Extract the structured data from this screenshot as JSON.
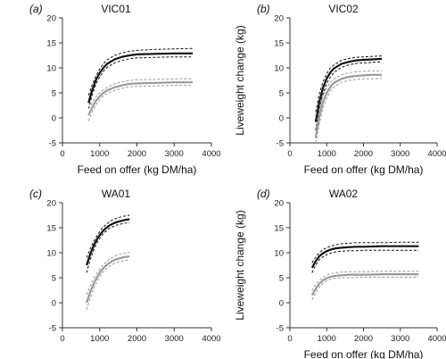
{
  "figure": {
    "ylabel": "Liveweight change (kg)",
    "xlabel": "Feed on offer (kg DM/ha)",
    "colors": {
      "dark": "#111111",
      "light": "#9a9a9a",
      "axis": "#333333"
    }
  },
  "chart_data": [
    {
      "panel_label": "(a)",
      "title": "VIC01",
      "type": "line",
      "xlim": [
        0,
        4000
      ],
      "ylim": [
        -5,
        20
      ],
      "xticks": [
        0,
        1000,
        2000,
        3000,
        4000
      ],
      "yticks": [
        -5,
        0,
        5,
        10,
        15,
        20
      ],
      "show_xlabel": true,
      "show_ylabel": false,
      "x": [
        700,
        800,
        900,
        1000,
        1100,
        1200,
        1400,
        1600,
        1800,
        2000,
        2500,
        3000,
        3500
      ],
      "series": [
        {
          "style": "dark",
          "values": [
            3.0,
            5.6,
            7.6,
            9.0,
            10.0,
            10.8,
            11.7,
            12.2,
            12.5,
            12.7,
            12.8,
            12.9,
            12.9
          ],
          "ci_upper": [
            4.5,
            6.6,
            8.4,
            9.8,
            10.8,
            11.6,
            12.5,
            13.0,
            13.3,
            13.5,
            13.7,
            13.8,
            13.9
          ],
          "ci_lower": [
            1.8,
            4.6,
            6.8,
            8.2,
            9.3,
            10.1,
            11.0,
            11.5,
            11.8,
            12.0,
            12.1,
            12.2,
            12.2
          ]
        },
        {
          "style": "light",
          "values": [
            0.5,
            2.1,
            3.4,
            4.3,
            5.0,
            5.5,
            6.1,
            6.5,
            6.8,
            6.9,
            7.0,
            7.1,
            7.1
          ],
          "ci_upper": [
            1.8,
            3.0,
            4.2,
            5.0,
            5.6,
            6.1,
            6.8,
            7.2,
            7.5,
            7.6,
            7.7,
            7.8,
            7.8
          ],
          "ci_lower": [
            -0.6,
            1.2,
            2.6,
            3.6,
            4.4,
            4.9,
            5.5,
            5.9,
            6.2,
            6.3,
            6.4,
            6.5,
            6.5
          ]
        }
      ]
    },
    {
      "panel_label": "(b)",
      "title": "VIC02",
      "type": "line",
      "xlim": [
        0,
        4000
      ],
      "ylim": [
        -5,
        20
      ],
      "xticks": [
        0,
        1000,
        2000,
        3000,
        4000
      ],
      "yticks": [
        -5,
        0,
        5,
        10,
        15,
        20
      ],
      "show_xlabel": true,
      "show_ylabel": true,
      "x": [
        700,
        800,
        900,
        1000,
        1100,
        1200,
        1400,
        1600,
        1800,
        2000,
        2250,
        2500
      ],
      "series": [
        {
          "style": "dark",
          "values": [
            -0.8,
            3.2,
            6.0,
            7.9,
            9.1,
            9.9,
            10.8,
            11.2,
            11.5,
            11.6,
            11.7,
            11.8
          ],
          "ci_upper": [
            1.2,
            4.8,
            7.2,
            8.9,
            10.0,
            10.6,
            11.5,
            11.9,
            12.1,
            12.2,
            12.3,
            12.4
          ],
          "ci_lower": [
            -2.5,
            1.8,
            4.8,
            6.9,
            8.2,
            9.1,
            10.1,
            10.6,
            10.9,
            11.0,
            11.1,
            11.2
          ]
        },
        {
          "style": "light",
          "values": [
            -4.0,
            0.3,
            3.2,
            5.0,
            6.2,
            7.0,
            7.8,
            8.2,
            8.4,
            8.5,
            8.6,
            8.6
          ],
          "ci_upper": [
            -2.2,
            1.8,
            4.4,
            6.0,
            7.1,
            7.8,
            8.6,
            9.0,
            9.2,
            9.3,
            9.4,
            9.4
          ],
          "ci_lower": [
            -5.0,
            -1.2,
            2.0,
            4.0,
            5.4,
            6.2,
            7.1,
            7.5,
            7.7,
            7.8,
            7.8,
            7.9
          ]
        }
      ]
    },
    {
      "panel_label": "(c)",
      "title": "WA01",
      "type": "line",
      "xlim": [
        0,
        4000
      ],
      "ylim": [
        -5,
        20
      ],
      "xticks": [
        0,
        1000,
        2000,
        3000,
        4000
      ],
      "yticks": [
        -5,
        0,
        5,
        10,
        15,
        20
      ],
      "show_xlabel": false,
      "show_ylabel": false,
      "x": [
        650,
        750,
        850,
        950,
        1050,
        1150,
        1250,
        1350,
        1450,
        1550,
        1650,
        1800
      ],
      "series": [
        {
          "style": "dark",
          "values": [
            7.5,
            9.8,
            11.6,
            13.0,
            14.0,
            14.8,
            15.4,
            15.8,
            16.1,
            16.3,
            16.5,
            16.7
          ],
          "ci_upper": [
            9.0,
            10.9,
            12.4,
            13.7,
            14.7,
            15.5,
            16.1,
            16.6,
            16.9,
            17.1,
            17.3,
            17.5
          ],
          "ci_lower": [
            6.0,
            8.7,
            10.8,
            12.3,
            13.4,
            14.2,
            14.8,
            15.2,
            15.5,
            15.7,
            15.9,
            16.0
          ]
        },
        {
          "style": "light",
          "values": [
            0.0,
            2.2,
            4.0,
            5.4,
            6.5,
            7.3,
            7.9,
            8.4,
            8.7,
            8.9,
            9.1,
            9.3
          ],
          "ci_upper": [
            1.6,
            3.4,
            5.0,
            6.2,
            7.2,
            8.0,
            8.6,
            9.1,
            9.5,
            9.7,
            9.9,
            10.1
          ],
          "ci_lower": [
            -1.4,
            1.0,
            3.0,
            4.6,
            5.8,
            6.6,
            7.2,
            7.7,
            8.0,
            8.2,
            8.4,
            8.6
          ]
        }
      ]
    },
    {
      "panel_label": "(d)",
      "title": "WA02",
      "type": "line",
      "xlim": [
        0,
        4000
      ],
      "ylim": [
        -5,
        20
      ],
      "xticks": [
        0,
        1000,
        2000,
        3000,
        4000
      ],
      "yticks": [
        -5,
        0,
        5,
        10,
        15,
        20
      ],
      "show_xlabel": true,
      "show_ylabel": true,
      "x": [
        600,
        700,
        800,
        900,
        1000,
        1100,
        1250,
        1400,
        1600,
        1800,
        2000,
        2500,
        3000,
        3500
      ],
      "series": [
        {
          "style": "dark",
          "values": [
            7.0,
            8.3,
            9.3,
            9.9,
            10.3,
            10.6,
            10.9,
            11.0,
            11.1,
            11.2,
            11.2,
            11.3,
            11.3,
            11.3
          ],
          "ci_upper": [
            8.0,
            9.1,
            10.0,
            10.6,
            11.0,
            11.3,
            11.6,
            11.8,
            11.9,
            12.0,
            12.0,
            12.0,
            12.1,
            12.1
          ],
          "ci_lower": [
            6.0,
            7.5,
            8.6,
            9.2,
            9.6,
            9.9,
            10.2,
            10.3,
            10.4,
            10.4,
            10.5,
            10.5,
            10.5,
            10.5
          ]
        },
        {
          "style": "light",
          "values": [
            1.5,
            2.8,
            3.8,
            4.5,
            4.9,
            5.2,
            5.4,
            5.5,
            5.6,
            5.6,
            5.6,
            5.7,
            5.7,
            5.7
          ],
          "ci_upper": [
            2.4,
            3.6,
            4.5,
            5.1,
            5.5,
            5.8,
            6.0,
            6.1,
            6.2,
            6.2,
            6.2,
            6.3,
            6.3,
            6.3
          ],
          "ci_lower": [
            0.6,
            2.0,
            3.1,
            3.9,
            4.4,
            4.7,
            4.9,
            5.0,
            5.0,
            5.1,
            5.1,
            5.1,
            5.1,
            5.1
          ]
        }
      ]
    }
  ]
}
